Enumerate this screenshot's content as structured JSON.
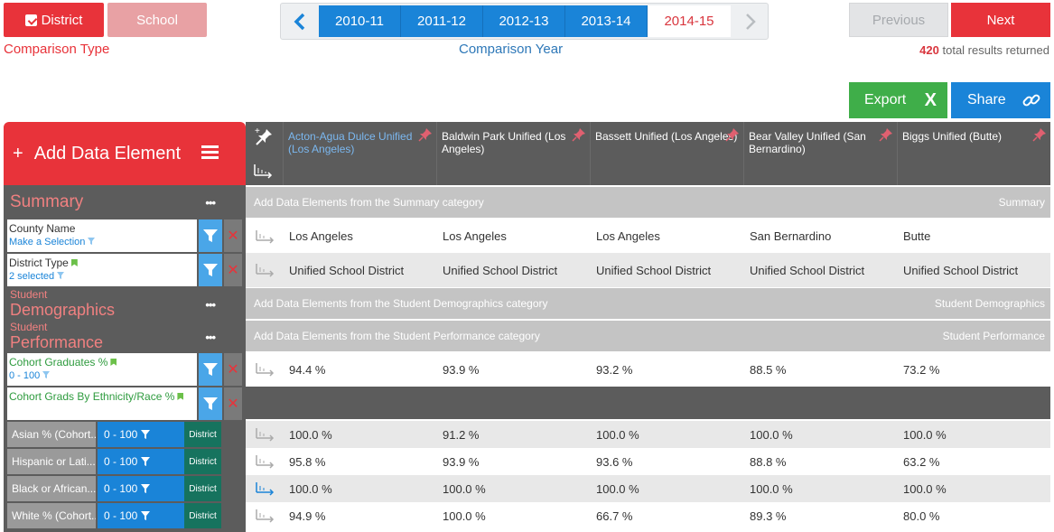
{
  "comparison_type": {
    "label": "Comparison Type",
    "options": [
      "District",
      "School"
    ],
    "selected": "District"
  },
  "comparison_year": {
    "label": "Comparison Year",
    "years": [
      "2010-11",
      "2011-12",
      "2012-13",
      "2013-14",
      "2014-15"
    ],
    "selected": "2014-15"
  },
  "pager": {
    "previous": "Previous",
    "next": "Next",
    "results_count": "420",
    "results_text": "total results returned"
  },
  "actions": {
    "export": "Export",
    "share": "Share"
  },
  "left_panel": {
    "add_label": "Add Data Element",
    "summary": {
      "title": "Summary"
    },
    "student_demographics": {
      "pre": "Student",
      "title": "Demographics"
    },
    "student_performance": {
      "pre": "Student",
      "title": "Performance"
    },
    "filters": [
      {
        "name": "County Name",
        "sub": "Make a Selection"
      },
      {
        "name": "District Type",
        "sub": "2 selected"
      },
      {
        "name": "Cohort Graduates %",
        "sub": "0 - 100"
      },
      {
        "name": "Cohort Grads By Ethnicity/Race %",
        "sub": ""
      }
    ],
    "sub_rows": [
      {
        "name": "Asian % (Cohort...",
        "range": "0 - 100",
        "tag": "District"
      },
      {
        "name": "Hispanic or Lati...",
        "range": "0 - 100",
        "tag": "District"
      },
      {
        "name": "Black or African...",
        "range": "0 - 100",
        "tag": "District"
      },
      {
        "name": "White % (Cohort...",
        "range": "0 - 100",
        "tag": "District"
      }
    ]
  },
  "table": {
    "columns": [
      "Acton-Agua Dulce Unified (Los Angeles)",
      "Baldwin Park Unified (Los Angeles)",
      "Bassett Unified (Los Angeles)",
      "Bear Valley Unified (San Bernardino)",
      "Biggs Unified (Butte)"
    ],
    "summary_bar": {
      "left": "Add Data Elements from the Summary category",
      "right": "Summary"
    },
    "demo_bar": {
      "left": "Add Data Elements from the Student Demographics category",
      "right": "Student Demographics"
    },
    "perf_bar": {
      "left": "Add Data Elements from the Student Performance category",
      "right": "Student Performance"
    },
    "county": [
      "Los Angeles",
      "Los Angeles",
      "Los Angeles",
      "San Bernardino",
      "Butte"
    ],
    "district_type": [
      "Unified School District",
      "Unified School District",
      "Unified School District",
      "Unified School District",
      "Unified School District"
    ],
    "cohort_grads": [
      "94.4 %",
      "93.9 %",
      "93.2 %",
      "88.5 %",
      "73.2 %"
    ],
    "asian": [
      "100.0 %",
      "91.2 %",
      "100.0 %",
      "100.0 %",
      "100.0 %"
    ],
    "hispanic": [
      "95.8 %",
      "93.9 %",
      "93.6 %",
      "88.8 %",
      "63.2 %"
    ],
    "black": [
      "100.0 %",
      "100.0 %",
      "100.0 %",
      "100.0 %",
      "100.0 %"
    ],
    "white": [
      "94.9 %",
      "100.0 %",
      "66.7 %",
      "89.3 %",
      "80.0 %"
    ]
  },
  "colors": {
    "accent_red": "#e8333a",
    "blue": "#1a84d8",
    "green": "#3fae49",
    "teal": "#16735e"
  }
}
